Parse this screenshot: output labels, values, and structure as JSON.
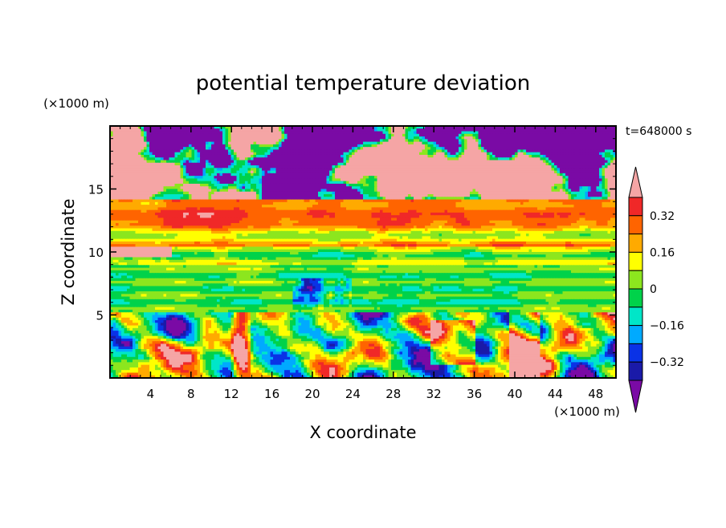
{
  "chart_data": {
    "type": "heatmap",
    "title": "potential temperature deviation",
    "xlabel": "X coordinate",
    "ylabel": "Z coordinate",
    "x_unit": "(×1000 m)",
    "y_unit": "(×1000 m)",
    "time_label": "t=648000 s",
    "xlim": [
      0,
      50
    ],
    "ylim": [
      0,
      20
    ],
    "x_ticks": [
      4,
      8,
      12,
      16,
      20,
      24,
      28,
      32,
      36,
      40,
      44,
      48
    ],
    "y_ticks": [
      5,
      10,
      15
    ],
    "colorbar": {
      "levels": [
        -0.4,
        -0.32,
        -0.24,
        -0.16,
        -0.08,
        0,
        0.08,
        0.16,
        0.24,
        0.32,
        0.4
      ],
      "tick_labels": [
        "0.32",
        "0.16",
        "0",
        "−0.16",
        "−0.32"
      ],
      "tick_values": [
        0.32,
        0.16,
        0,
        -0.16,
        -0.32
      ],
      "colors": [
        "#7a0aa5",
        "#1a1aa8",
        "#0a32e6",
        "#00aaff",
        "#00e6c8",
        "#00d24a",
        "#8ce61e",
        "#ffff00",
        "#ffaa00",
        "#ff6400",
        "#f02828",
        "#f5a5a5"
      ],
      "extend": "both"
    }
  }
}
